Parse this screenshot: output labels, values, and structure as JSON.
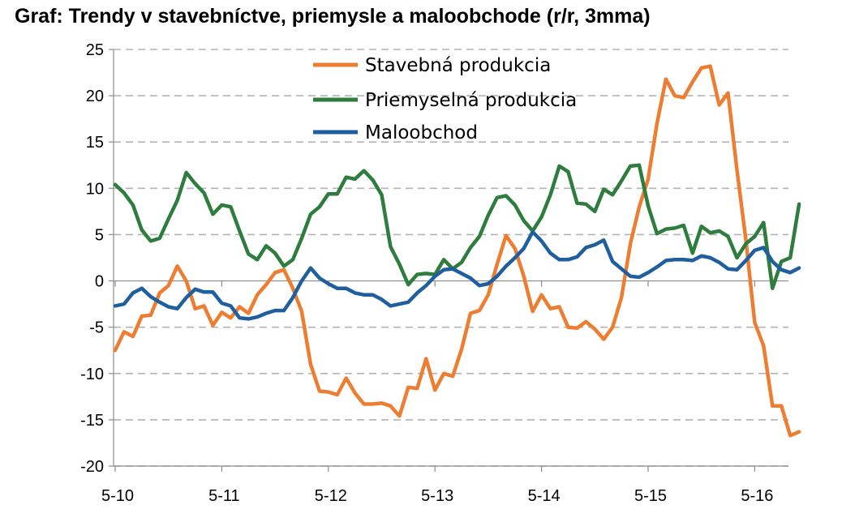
{
  "chart_data": {
    "type": "line",
    "title": "Graf: Trendy v stavebníctve, priemysle a maloobchode (r/r, 3mma)",
    "xlabel": "",
    "ylabel": "",
    "ylim": [
      -20,
      25
    ],
    "yticks": [
      "25",
      "20",
      "15",
      "10",
      "5",
      "0",
      "-5",
      "-10",
      "-15",
      "-20"
    ],
    "xticks": [
      "5-10",
      "5-11",
      "5-12",
      "5-13",
      "5-14",
      "5-15",
      "5-16"
    ],
    "grid": "horizontal dashed",
    "legend_position": "top-center",
    "x_start": "2010-05",
    "series": [
      {
        "name": "Stavebná produkcia",
        "color": "#ed7d31",
        "values": [
          -7.5,
          -5.5,
          -6,
          -3.8,
          -3.7,
          -1.3,
          -0.5,
          1.6,
          0,
          -3,
          -2.7,
          -4.8,
          -3.4,
          -4,
          -2.8,
          -3.5,
          -1.5,
          -0.4,
          0.9,
          1.2,
          -0.8,
          -3.3,
          -9,
          -11.9,
          -12,
          -12.3,
          -10.5,
          -12.1,
          -13.3,
          -13.3,
          -13.2,
          -13.5,
          -14.6,
          -11.5,
          -11.6,
          -8.4,
          -11.8,
          -10,
          -10.3,
          -7.4,
          -3.5,
          -3.2,
          -1.5,
          1.8,
          4.9,
          3.5,
          0.5,
          -3.3,
          -1.5,
          -3,
          -2.8,
          -5,
          -5.1,
          -4.4,
          -5.2,
          -6.3,
          -5,
          -1.8,
          4,
          8,
          11,
          17,
          21.8,
          20,
          19.8,
          21.5,
          23,
          23.2,
          19,
          20.3,
          12,
          4.5,
          -4.5,
          -7,
          -13.5,
          -13.5,
          -16.7,
          -16.3
        ]
      },
      {
        "name": "Priemyselná produkcia",
        "color": "#2e7d3e",
        "values": [
          10.4,
          9.5,
          8.2,
          5.5,
          4.3,
          4.6,
          6.7,
          8.7,
          11.7,
          10.5,
          9.5,
          7.2,
          8.2,
          8,
          5.4,
          2.9,
          2.3,
          3.8,
          3,
          1.6,
          2.3,
          4.6,
          7.2,
          8,
          9.4,
          9.4,
          11.2,
          11,
          11.9,
          10.9,
          9.3,
          3.7,
          1.8,
          -0.4,
          0.7,
          0.8,
          0.7,
          2.3,
          1.3,
          2,
          3.6,
          4.8,
          7.1,
          9,
          9.2,
          8.2,
          6.5,
          5.4,
          6.9,
          9.3,
          12.4,
          11.8,
          8.4,
          8.3,
          7.5,
          9.9,
          9.3,
          10.8,
          12.4,
          12.5,
          8.1,
          5.1,
          5.6,
          5.7,
          6,
          3,
          5.9,
          5.2,
          5.4,
          4.8,
          2.5,
          4,
          4.8,
          6.3,
          -0.8,
          2.1,
          2.5,
          8.3
        ]
      },
      {
        "name": "Maloobchod",
        "color": "#1f5fa0",
        "values": [
          -2.7,
          -2.5,
          -1.3,
          -0.8,
          -1.7,
          -2.3,
          -2.8,
          -3,
          -1.8,
          -0.9,
          -1.2,
          -1.2,
          -2.4,
          -2.7,
          -4,
          -4.1,
          -3.9,
          -3.5,
          -3.2,
          -3.2,
          -1.8,
          0,
          1.4,
          0.3,
          -0.3,
          -0.8,
          -0.8,
          -1.3,
          -1.5,
          -1.5,
          -2,
          -2.7,
          -2.5,
          -2.3,
          -1.3,
          -0.5,
          0.5,
          1.2,
          1.3,
          0.8,
          0.3,
          -0.5,
          -0.3,
          0.5,
          1.6,
          2.5,
          3.5,
          5.3,
          4.3,
          3,
          2.3,
          2.3,
          2.6,
          3.6,
          3.9,
          4.4,
          2.1,
          1.3,
          0.5,
          0.4,
          0.9,
          1.5,
          2.2,
          2.3,
          2.3,
          2.2,
          2.7,
          2.5,
          2,
          1.3,
          1.2,
          2.2,
          3.3,
          3.6,
          2.1,
          1.2,
          0.9,
          1.4
        ]
      }
    ]
  }
}
